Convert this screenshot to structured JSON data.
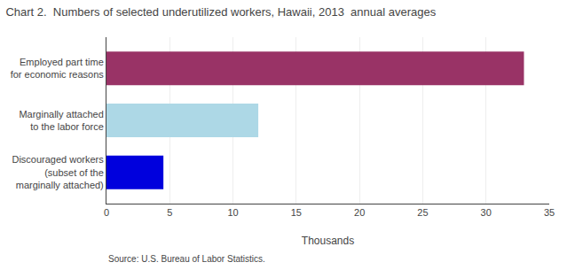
{
  "chart_data": {
    "type": "bar",
    "orientation": "horizontal",
    "title": "Chart 2.  Numbers of selected underutilized workers, Hawaii, 2013  annual averages",
    "categories": [
      "Discouraged workers\n(subset of the\nmarginally attached)",
      "Marginally attached\nto the labor force",
      "Employed part time\nfor economic reasons"
    ],
    "values": [
      4.5,
      12.0,
      33.0
    ],
    "colors": [
      "#0000dd",
      "#add8e6",
      "#993366"
    ],
    "xlabel": "Thousands",
    "xlim": [
      0,
      35
    ],
    "xticks": [
      0,
      5,
      10,
      15,
      20,
      25,
      30,
      35
    ],
    "grid": true,
    "annotations": [
      "Source: U.S. Bureau of Labor Statistics."
    ]
  }
}
